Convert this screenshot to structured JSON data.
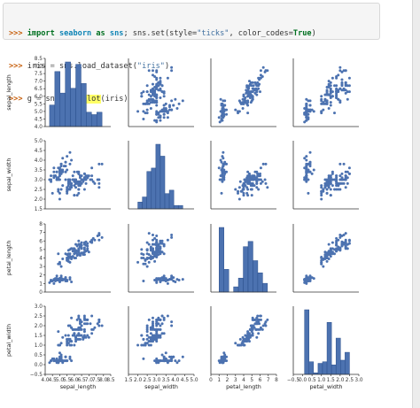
{
  "code": {
    "prompt": ">>>",
    "line1": {
      "kw_import": "import",
      "module": "seaborn",
      "kw_as": "as",
      "alias": "sns",
      "rest": "; sns.set(style=",
      "style_val": "\"ticks\"",
      "mid": ", color_codes=",
      "true_val": "True",
      "close": ")"
    },
    "line2": {
      "lhs": "iris ",
      "eq": "=",
      "call": " sns.load_dataset(",
      "arg": "\"iris\"",
      "close": ")"
    },
    "line3": {
      "lhs": "g ",
      "eq": "=",
      "pre": " sns.",
      "func": "pairplot",
      "args": "(iris)"
    }
  },
  "colors": {
    "marker": "#4c72b0",
    "bar": "#4c72b0",
    "bar_edge": "#2a4f8c",
    "axis": "#333333"
  },
  "variables": [
    "sepal_length",
    "sepal_width",
    "petal_length",
    "petal_width"
  ],
  "axis_labels": {
    "y": [
      "sepal_length",
      "sepal_width",
      "petal_length",
      "petal_width"
    ],
    "x": [
      "sepal_length",
      "sepal_width",
      "petal_length",
      "petal_width"
    ]
  },
  "chart_data": {
    "type": "scatter",
    "kind": "pairplot",
    "ranges": {
      "sepal_length": [
        4.0,
        8.5
      ],
      "sepal_width": [
        1.5,
        5.0
      ],
      "petal_length": [
        0,
        8
      ],
      "petal_width": [
        -0.5,
        3.0
      ]
    },
    "yticks": {
      "sepal_length": [
        "4.0",
        "4.5",
        "5.0",
        "5.5",
        "6.0",
        "6.5",
        "7.0",
        "7.5",
        "8.0",
        "8.5"
      ],
      "sepal_width": [
        "1.5",
        "2.0",
        "2.5",
        "3.0",
        "3.5",
        "4.0",
        "4.5",
        "5.0"
      ],
      "petal_length": [
        "0",
        "1",
        "2",
        "3",
        "4",
        "5",
        "6",
        "7",
        "8"
      ],
      "petal_width": [
        "−0.5",
        "0.0",
        "0.5",
        "1.0",
        "1.5",
        "2.0",
        "2.5",
        "3.0"
      ]
    },
    "xticks": {
      "sepal_length": [
        "4.0",
        "4.5",
        "5.0",
        "5.5",
        "6.0",
        "6.5",
        "7.0",
        "7.5",
        "8.0",
        "8.5"
      ],
      "sepal_width": [
        "1.5",
        "2.0",
        "2.5",
        "3.0",
        "3.5",
        "4.0",
        "4.5",
        "5.0"
      ],
      "petal_length": [
        "0",
        "1",
        "2",
        "3",
        "4",
        "5",
        "6",
        "7",
        "8"
      ],
      "petal_width": [
        "−0.5",
        "0.0",
        "0.5",
        "1.0",
        "1.5",
        "2.0",
        "2.5",
        "3.0"
      ]
    },
    "histograms": {
      "sepal_length": {
        "edges": [
          4.3,
          4.66,
          5.02,
          5.38,
          5.74,
          6.1,
          6.46,
          6.82,
          7.18,
          7.54,
          7.9
        ],
        "counts": [
          9,
          23,
          14,
          27,
          16,
          26,
          18,
          6,
          5,
          6
        ]
      },
      "sepal_width": {
        "edges": [
          2.0,
          2.24,
          2.48,
          2.72,
          2.96,
          3.2,
          3.44,
          3.68,
          3.92,
          4.16,
          4.4
        ],
        "counts": [
          4,
          7,
          22,
          24,
          38,
          31,
          9,
          11,
          2,
          2
        ]
      },
      "petal_length": {
        "edges": [
          1.0,
          1.59,
          2.18,
          2.77,
          3.36,
          3.95,
          4.54,
          5.13,
          5.72,
          6.31,
          6.9
        ],
        "counts": [
          37,
          13,
          0,
          3,
          8,
          26,
          29,
          18,
          11,
          5
        ]
      },
      "petal_width": {
        "edges": [
          0.1,
          0.34,
          0.58,
          0.82,
          1.06,
          1.3,
          1.54,
          1.78,
          2.02,
          2.26,
          2.5
        ],
        "counts": [
          41,
          8,
          1,
          7,
          8,
          33,
          6,
          23,
          9,
          14
        ]
      }
    },
    "points": [
      [
        5.1,
        3.5,
        1.4,
        0.2
      ],
      [
        4.9,
        3.0,
        1.4,
        0.2
      ],
      [
        4.7,
        3.2,
        1.3,
        0.2
      ],
      [
        4.6,
        3.1,
        1.5,
        0.2
      ],
      [
        5.0,
        3.6,
        1.4,
        0.2
      ],
      [
        5.4,
        3.9,
        1.7,
        0.4
      ],
      [
        4.6,
        3.4,
        1.4,
        0.3
      ],
      [
        5.0,
        3.4,
        1.5,
        0.2
      ],
      [
        4.4,
        2.9,
        1.4,
        0.2
      ],
      [
        4.9,
        3.1,
        1.5,
        0.1
      ],
      [
        5.4,
        3.7,
        1.5,
        0.2
      ],
      [
        4.8,
        3.4,
        1.6,
        0.2
      ],
      [
        4.8,
        3.0,
        1.4,
        0.1
      ],
      [
        4.3,
        3.0,
        1.1,
        0.1
      ],
      [
        5.8,
        4.0,
        1.2,
        0.2
      ],
      [
        5.7,
        4.4,
        1.5,
        0.4
      ],
      [
        5.4,
        3.9,
        1.3,
        0.4
      ],
      [
        5.1,
        3.5,
        1.4,
        0.3
      ],
      [
        5.7,
        3.8,
        1.7,
        0.3
      ],
      [
        5.1,
        3.8,
        1.5,
        0.3
      ],
      [
        5.4,
        3.4,
        1.7,
        0.2
      ],
      [
        5.1,
        3.7,
        1.5,
        0.4
      ],
      [
        4.6,
        3.6,
        1.0,
        0.2
      ],
      [
        5.1,
        3.3,
        1.7,
        0.5
      ],
      [
        4.8,
        3.4,
        1.9,
        0.2
      ],
      [
        5.0,
        3.0,
        1.6,
        0.2
      ],
      [
        5.0,
        3.4,
        1.6,
        0.4
      ],
      [
        5.2,
        3.5,
        1.5,
        0.2
      ],
      [
        5.2,
        3.4,
        1.4,
        0.2
      ],
      [
        4.7,
        3.2,
        1.6,
        0.2
      ],
      [
        4.8,
        3.1,
        1.6,
        0.2
      ],
      [
        5.4,
        3.4,
        1.5,
        0.4
      ],
      [
        5.2,
        4.1,
        1.5,
        0.1
      ],
      [
        5.5,
        4.2,
        1.4,
        0.2
      ],
      [
        4.9,
        3.1,
        1.5,
        0.2
      ],
      [
        5.0,
        3.2,
        1.2,
        0.2
      ],
      [
        5.5,
        3.5,
        1.3,
        0.2
      ],
      [
        4.9,
        3.6,
        1.4,
        0.1
      ],
      [
        4.4,
        3.0,
        1.3,
        0.2
      ],
      [
        5.1,
        3.4,
        1.5,
        0.2
      ],
      [
        5.0,
        3.5,
        1.3,
        0.3
      ],
      [
        4.5,
        2.3,
        1.3,
        0.3
      ],
      [
        4.4,
        3.2,
        1.3,
        0.2
      ],
      [
        5.0,
        3.5,
        1.6,
        0.6
      ],
      [
        5.1,
        3.8,
        1.9,
        0.4
      ],
      [
        4.8,
        3.0,
        1.4,
        0.3
      ],
      [
        5.1,
        3.8,
        1.6,
        0.2
      ],
      [
        4.6,
        3.2,
        1.4,
        0.2
      ],
      [
        5.3,
        3.7,
        1.5,
        0.2
      ],
      [
        5.0,
        3.3,
        1.4,
        0.2
      ],
      [
        7.0,
        3.2,
        4.7,
        1.4
      ],
      [
        6.4,
        3.2,
        4.5,
        1.5
      ],
      [
        6.9,
        3.1,
        4.9,
        1.5
      ],
      [
        5.5,
        2.3,
        4.0,
        1.3
      ],
      [
        6.5,
        2.8,
        4.6,
        1.5
      ],
      [
        5.7,
        2.8,
        4.5,
        1.3
      ],
      [
        6.3,
        3.3,
        4.7,
        1.6
      ],
      [
        4.9,
        2.4,
        3.3,
        1.0
      ],
      [
        6.6,
        2.9,
        4.6,
        1.3
      ],
      [
        5.2,
        2.7,
        3.9,
        1.4
      ],
      [
        5.0,
        2.0,
        3.5,
        1.0
      ],
      [
        5.9,
        3.0,
        4.2,
        1.5
      ],
      [
        6.0,
        2.2,
        4.0,
        1.0
      ],
      [
        6.1,
        2.9,
        4.7,
        1.4
      ],
      [
        5.6,
        2.9,
        3.6,
        1.3
      ],
      [
        6.7,
        3.1,
        4.4,
        1.4
      ],
      [
        5.6,
        3.0,
        4.5,
        1.5
      ],
      [
        5.8,
        2.7,
        4.1,
        1.0
      ],
      [
        6.2,
        2.2,
        4.5,
        1.5
      ],
      [
        5.6,
        2.5,
        3.9,
        1.1
      ],
      [
        5.9,
        3.2,
        4.8,
        1.8
      ],
      [
        6.1,
        2.8,
        4.0,
        1.3
      ],
      [
        6.3,
        2.5,
        4.9,
        1.5
      ],
      [
        6.1,
        2.8,
        4.7,
        1.2
      ],
      [
        6.4,
        2.9,
        4.3,
        1.3
      ],
      [
        6.6,
        3.0,
        4.4,
        1.4
      ],
      [
        6.8,
        2.8,
        4.8,
        1.4
      ],
      [
        6.7,
        3.0,
        5.0,
        1.7
      ],
      [
        6.0,
        2.9,
        4.5,
        1.5
      ],
      [
        5.7,
        2.6,
        3.5,
        1.0
      ],
      [
        5.5,
        2.4,
        3.8,
        1.1
      ],
      [
        5.5,
        2.4,
        3.7,
        1.0
      ],
      [
        5.8,
        2.7,
        3.9,
        1.2
      ],
      [
        6.0,
        2.7,
        5.1,
        1.6
      ],
      [
        5.4,
        3.0,
        4.5,
        1.5
      ],
      [
        6.0,
        3.4,
        4.5,
        1.6
      ],
      [
        6.7,
        3.1,
        4.7,
        1.5
      ],
      [
        6.3,
        2.3,
        4.4,
        1.3
      ],
      [
        5.6,
        3.0,
        4.1,
        1.3
      ],
      [
        5.5,
        2.5,
        4.0,
        1.3
      ],
      [
        5.5,
        2.6,
        4.4,
        1.2
      ],
      [
        6.1,
        3.0,
        4.6,
        1.4
      ],
      [
        5.8,
        2.6,
        4.0,
        1.2
      ],
      [
        5.0,
        2.3,
        3.3,
        1.0
      ],
      [
        5.6,
        2.7,
        4.2,
        1.3
      ],
      [
        5.7,
        3.0,
        4.2,
        1.2
      ],
      [
        5.7,
        2.9,
        4.2,
        1.3
      ],
      [
        6.2,
        2.9,
        4.3,
        1.3
      ],
      [
        5.1,
        2.5,
        3.0,
        1.1
      ],
      [
        5.7,
        2.8,
        4.1,
        1.3
      ],
      [
        6.3,
        3.3,
        6.0,
        2.5
      ],
      [
        5.8,
        2.7,
        5.1,
        1.9
      ],
      [
        7.1,
        3.0,
        5.9,
        2.1
      ],
      [
        6.3,
        2.9,
        5.6,
        1.8
      ],
      [
        6.5,
        3.0,
        5.8,
        2.2
      ],
      [
        7.6,
        3.0,
        6.6,
        2.1
      ],
      [
        4.9,
        2.5,
        4.5,
        1.7
      ],
      [
        7.3,
        2.9,
        6.3,
        1.8
      ],
      [
        6.7,
        2.5,
        5.8,
        1.8
      ],
      [
        7.2,
        3.6,
        6.1,
        2.5
      ],
      [
        6.5,
        3.2,
        5.1,
        2.0
      ],
      [
        6.4,
        2.7,
        5.3,
        1.9
      ],
      [
        6.8,
        3.0,
        5.5,
        2.1
      ],
      [
        5.7,
        2.5,
        5.0,
        2.0
      ],
      [
        5.8,
        2.8,
        5.1,
        2.4
      ],
      [
        6.4,
        3.2,
        5.3,
        2.3
      ],
      [
        6.5,
        3.0,
        5.5,
        1.8
      ],
      [
        7.7,
        3.8,
        6.7,
        2.2
      ],
      [
        7.7,
        2.6,
        6.9,
        2.3
      ],
      [
        6.0,
        2.2,
        5.0,
        1.5
      ],
      [
        6.9,
        3.2,
        5.7,
        2.3
      ],
      [
        5.6,
        2.8,
        4.9,
        2.0
      ],
      [
        7.7,
        2.8,
        6.7,
        2.0
      ],
      [
        6.3,
        2.7,
        4.9,
        1.8
      ],
      [
        6.7,
        3.3,
        5.7,
        2.1
      ],
      [
        7.2,
        3.2,
        6.0,
        1.8
      ],
      [
        6.2,
        2.8,
        4.8,
        1.8
      ],
      [
        6.1,
        3.0,
        4.9,
        1.8
      ],
      [
        6.4,
        2.8,
        5.6,
        2.1
      ],
      [
        7.2,
        3.0,
        5.8,
        1.6
      ],
      [
        7.4,
        2.8,
        6.1,
        1.9
      ],
      [
        7.9,
        3.8,
        6.4,
        2.0
      ],
      [
        6.4,
        2.8,
        5.6,
        2.2
      ],
      [
        6.3,
        2.8,
        5.1,
        1.5
      ],
      [
        6.1,
        2.6,
        5.6,
        1.4
      ],
      [
        7.7,
        3.0,
        6.1,
        2.3
      ],
      [
        6.3,
        3.4,
        5.6,
        2.4
      ],
      [
        6.4,
        3.1,
        5.5,
        1.8
      ],
      [
        6.0,
        3.0,
        4.8,
        1.8
      ],
      [
        6.9,
        3.1,
        5.4,
        2.1
      ],
      [
        6.7,
        3.1,
        5.6,
        2.4
      ],
      [
        6.9,
        3.1,
        5.1,
        2.3
      ],
      [
        5.8,
        2.7,
        5.1,
        1.9
      ],
      [
        6.8,
        3.2,
        5.9,
        2.3
      ],
      [
        6.7,
        3.3,
        5.7,
        2.5
      ],
      [
        6.7,
        3.0,
        5.2,
        2.3
      ],
      [
        6.3,
        2.5,
        5.0,
        1.9
      ],
      [
        6.5,
        3.0,
        5.2,
        2.0
      ],
      [
        6.2,
        3.4,
        5.4,
        2.3
      ],
      [
        5.9,
        3.0,
        5.1,
        1.8
      ]
    ]
  }
}
